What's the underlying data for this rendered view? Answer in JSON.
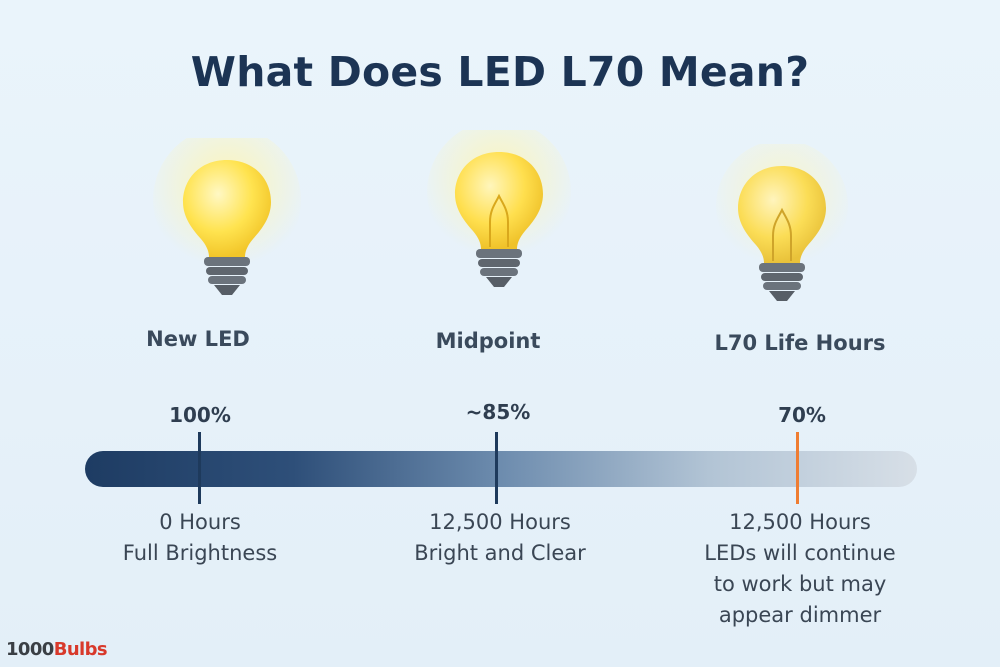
{
  "title": "What Does LED L70 Mean?",
  "stages": [
    {
      "label": "New LED",
      "percent": "100%",
      "brightness_fraction": 1.0,
      "description": [
        "0 Hours",
        "Full Brightness"
      ]
    },
    {
      "label": "Midpoint",
      "percent": "~85%",
      "brightness_fraction": 0.85,
      "description": [
        "12,500 Hours",
        "Bright and Clear"
      ]
    },
    {
      "label": "L70 Life Hours",
      "percent": "70%",
      "brightness_fraction": 0.7,
      "description": [
        "12,500 Hours",
        "LEDs will continue",
        "to work but may",
        "appear dimmer"
      ]
    }
  ],
  "colors": {
    "title": "#1c3454",
    "bar_start": "#1e3c63",
    "bar_end": "#d7dfe7",
    "marker": "#1e3a5c",
    "marker_l70": "#ef7d32",
    "bulb_glass": "#ffe15a",
    "bulb_base": "#6b737c"
  },
  "logo": {
    "prefix": "1000",
    "suffix": "Bulbs"
  },
  "icons": [
    "light-bulb-icon",
    "light-bulb-icon",
    "light-bulb-icon"
  ]
}
